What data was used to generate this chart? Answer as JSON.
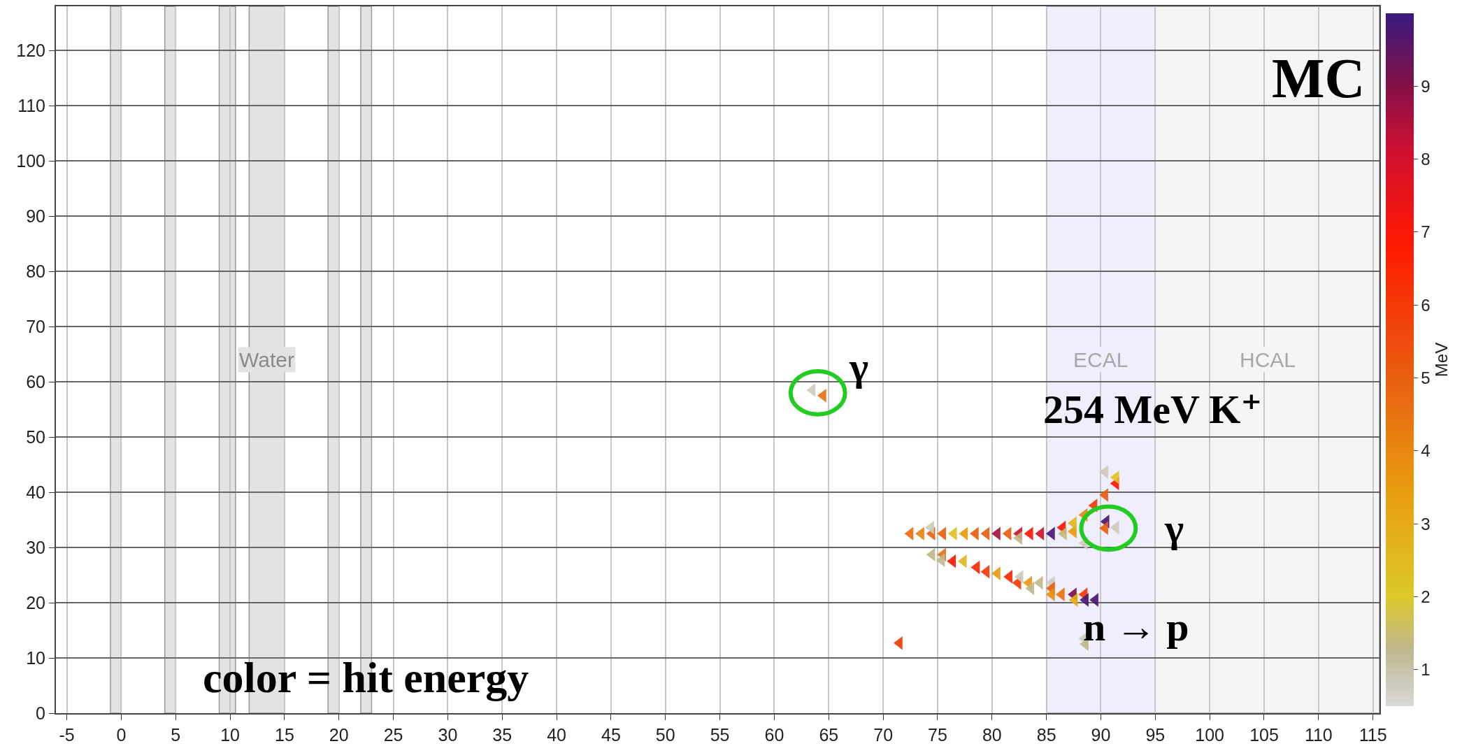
{
  "chart_data": {
    "type": "scatter",
    "annotations": [
      "MC",
      "color = hit energy",
      "γ",
      "γ",
      "254 MeV K⁺",
      "n → p"
    ],
    "series": [
      {
        "x": [
          63.5,
          64.5,
          72.5,
          73.5,
          74.5,
          75.5,
          76.5,
          77.5,
          78.5,
          79.5,
          80.5,
          81.5,
          82.5,
          83.5,
          84.5,
          85.5,
          74.4,
          82.5,
          86.5,
          86.6,
          87.5,
          87.5,
          88.5,
          89.4,
          90.4,
          91.4,
          91.4,
          90.4,
          90.5,
          90.4,
          91.4,
          88.5,
          74.5,
          75.5,
          75.4,
          76.4,
          77.4,
          78.6,
          79.5,
          80.5,
          81.6,
          82.4,
          82.6,
          83.4,
          84.4,
          83.6,
          85.5,
          85.5,
          85.5,
          86.4,
          87.5,
          88.5,
          87.6,
          88.6,
          89.5,
          71.5,
          88.5,
          88.6
        ],
        "values": [
          58.5,
          57.5,
          32.5,
          32.5,
          32.5,
          32.5,
          32.5,
          32.5,
          32.5,
          32.5,
          32.5,
          32.5,
          32.5,
          32.5,
          32.5,
          32.5,
          33.6,
          31.7,
          33.6,
          32.5,
          32.9,
          34.4,
          35.9,
          37.6,
          39.5,
          41.6,
          42.7,
          43.7,
          34.7,
          33.5,
          33.6,
          30.8,
          28.7,
          28.7,
          27.7,
          27.5,
          27.5,
          26.4,
          25.6,
          25.3,
          24.7,
          23.6,
          24.7,
          23.6,
          23.6,
          22.6,
          23.6,
          22.6,
          21.5,
          21.5,
          21.5,
          21.5,
          20.5,
          20.5,
          20.5,
          12.7,
          13.5,
          12.5
        ],
        "cvalues": [
          0.8,
          4.5,
          4.5,
          4,
          5,
          5,
          2.3,
          3.5,
          5,
          5,
          8.6,
          5,
          8,
          7,
          8,
          9.8,
          0.8,
          1.3,
          7,
          1.4,
          3.5,
          2.5,
          4,
          6,
          5,
          7,
          2.2,
          0.8,
          9.8,
          5,
          0.8,
          0.8,
          1.3,
          4.5,
          1.3,
          7,
          2.5,
          6.5,
          6,
          3.5,
          6.5,
          6,
          0.8,
          3.5,
          1.3,
          1.3,
          0.8,
          5,
          3.8,
          4.5,
          9.2,
          6,
          3,
          9.8,
          9.8,
          6,
          0.8,
          1.3
        ]
      }
    ],
    "marker": "triangle",
    "clabel": "MeV",
    "clim": [
      0.5,
      10
    ],
    "cticks": [
      1,
      2,
      3,
      4,
      5,
      6,
      7,
      8,
      9
    ],
    "xlim": [
      -6,
      115.6
    ],
    "xticks": [
      -5,
      0,
      5,
      10,
      15,
      20,
      25,
      30,
      35,
      40,
      45,
      50,
      55,
      60,
      65,
      70,
      75,
      80,
      85,
      90,
      95,
      100,
      105,
      110,
      115
    ],
    "ylim": [
      0,
      128
    ],
    "yticks": [
      0,
      10,
      20,
      30,
      40,
      50,
      60,
      70,
      80,
      90,
      100,
      110,
      120
    ],
    "grid": true,
    "bands": [
      {
        "axis": "x",
        "from": -1,
        "to": 0,
        "color": "#e3e3e3"
      },
      {
        "axis": "x",
        "from": 4,
        "to": 5,
        "color": "#e3e3e3"
      },
      {
        "axis": "x",
        "from": 9,
        "to": 10.5,
        "color": "#e3e3e3"
      },
      {
        "axis": "x",
        "from": 11.75,
        "to": 15,
        "color": "#e3e3e3",
        "label": "Water"
      },
      {
        "axis": "x",
        "from": 19,
        "to": 20,
        "color": "#e3e3e3"
      },
      {
        "axis": "x",
        "from": 22,
        "to": 23,
        "color": "#e3e3e3"
      },
      {
        "axis": "x",
        "from": 85,
        "to": 95,
        "color": "#eeeefc",
        "label": "ECAL"
      },
      {
        "axis": "x",
        "from": 95,
        "to": 115.6,
        "color": "#f5f5f5",
        "label": "HCAL"
      }
    ]
  }
}
